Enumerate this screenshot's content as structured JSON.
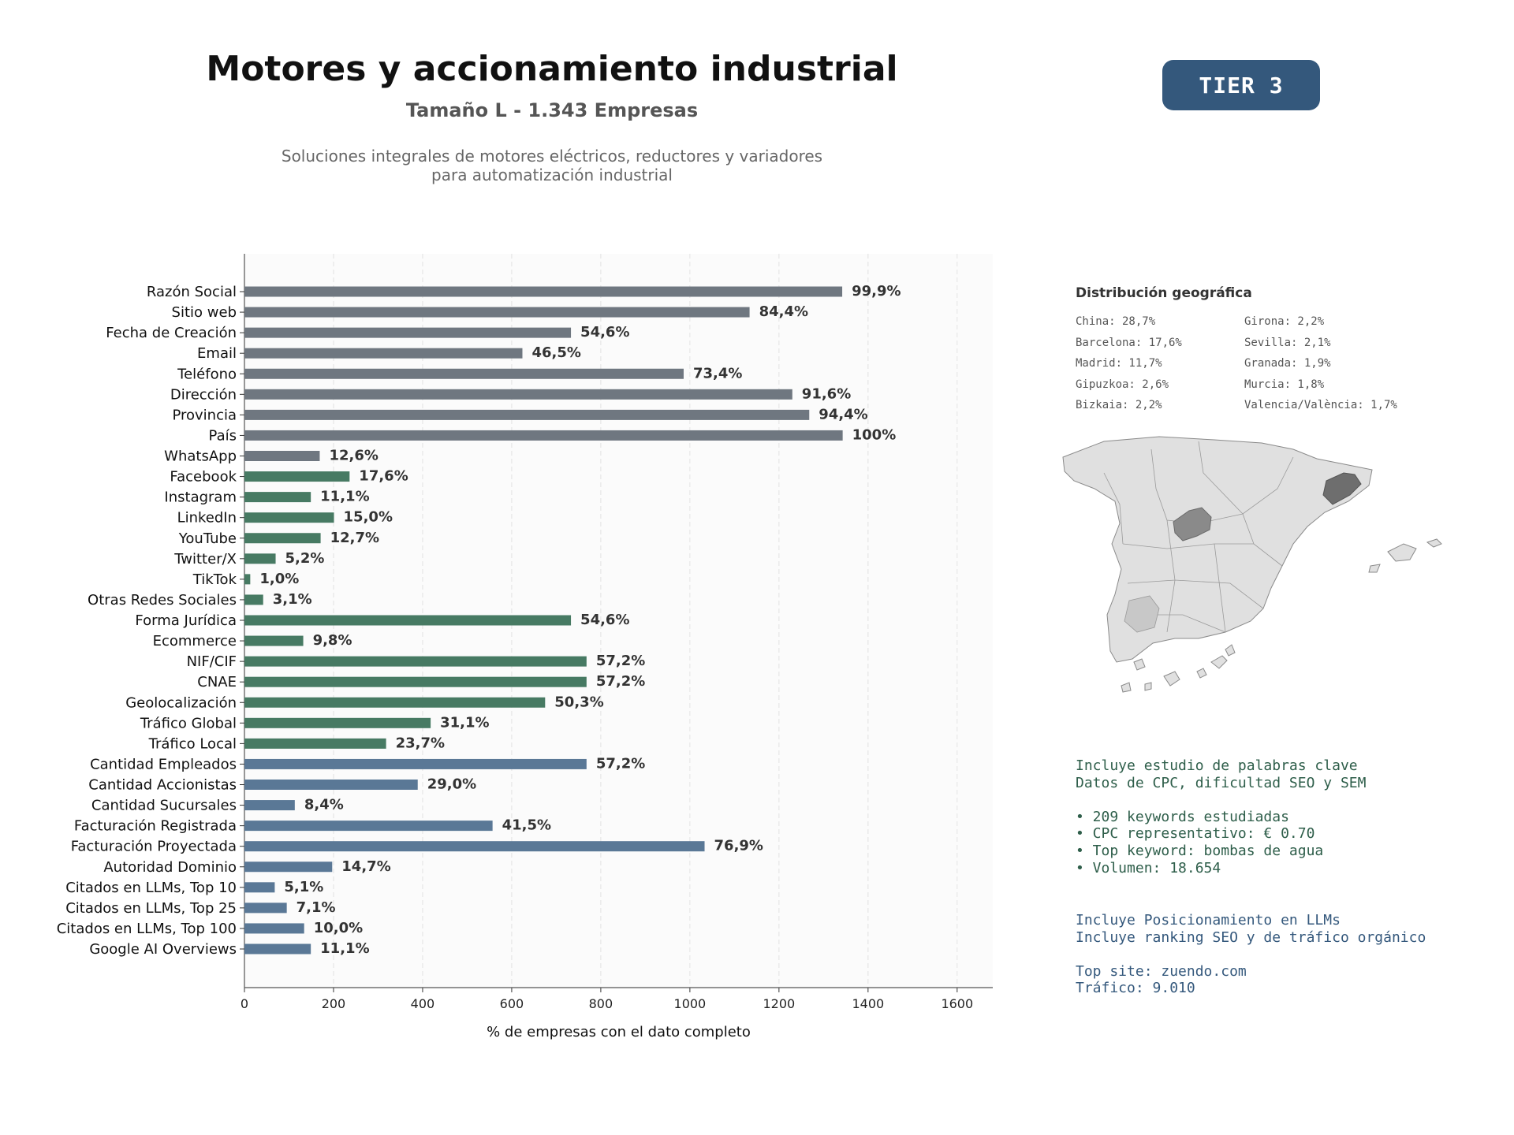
{
  "header": {
    "title": "Motores y accionamiento industrial",
    "subtitle": "Tamaño L - 1.343 Empresas",
    "description_line1": "Soluciones integrales de motores eléctricos, reductores y variadores",
    "description_line2": "para automatización industrial",
    "tier": "TIER 3"
  },
  "chart_data": {
    "type": "bar",
    "orientation": "horizontal",
    "xlabel": "% de empresas con el dato completo",
    "xlim": [
      0,
      1680
    ],
    "xticks": [
      0,
      200,
      400,
      600,
      800,
      1000,
      1200,
      1400,
      1600
    ],
    "grid": "vertical dashed",
    "categories": [
      "Razón Social",
      "Sitio web",
      "Fecha de Creación",
      "Email",
      "Teléfono",
      "Dirección",
      "Provincia",
      "País",
      "WhatsApp",
      "Facebook",
      "Instagram",
      "LinkedIn",
      "YouTube",
      "Twitter/X",
      "TikTok",
      "Otras Redes Sociales",
      "Forma Jurídica",
      "Ecommerce",
      "NIF/CIF",
      "CNAE",
      "Geolocalización",
      "Tráfico Global",
      "Tráfico Local",
      "Cantidad Empleados",
      "Cantidad Accionistas",
      "Cantidad Sucursales",
      "Facturación Registrada",
      "Facturación Proyectada",
      "Autoridad Dominio",
      "Citados en LLMs, Top 10",
      "Citados en LLMs, Top 25",
      "Citados en LLMs, Top 100",
      "Google AI Overviews"
    ],
    "values": [
      1342,
      1134,
      733,
      624,
      986,
      1230,
      1268,
      1343,
      169,
      236,
      149,
      201,
      171,
      70,
      13,
      42,
      733,
      132,
      768,
      768,
      675,
      418,
      318,
      768,
      389,
      113,
      557,
      1033,
      197,
      68,
      95,
      134,
      149
    ],
    "labels": [
      "99,9%",
      "84,4%",
      "54,6%",
      "46,5%",
      "73,4%",
      "91,6%",
      "94,4%",
      "100%",
      "12,6%",
      "17,6%",
      "11,1%",
      "15,0%",
      "12,7%",
      "5,2%",
      "1,0%",
      "3,1%",
      "54,6%",
      "9,8%",
      "57,2%",
      "57,2%",
      "50,3%",
      "31,1%",
      "23,7%",
      "57,2%",
      "29,0%",
      "8,4%",
      "41,5%",
      "76,9%",
      "14,7%",
      "5,1%",
      "7,1%",
      "10,0%",
      "11,1%"
    ],
    "group_colors": [
      "#6f7780",
      "#6f7780",
      "#6f7780",
      "#6f7780",
      "#6f7780",
      "#6f7780",
      "#6f7780",
      "#6f7780",
      "#6f7780",
      "#477a63",
      "#477a63",
      "#477a63",
      "#477a63",
      "#477a63",
      "#477a63",
      "#477a63",
      "#477a63",
      "#477a63",
      "#477a63",
      "#477a63",
      "#477a63",
      "#477a63",
      "#477a63",
      "#5a7896",
      "#5a7896",
      "#5a7896",
      "#5a7896",
      "#5a7896",
      "#5a7896",
      "#5a7896",
      "#5a7896",
      "#5a7896",
      "#5a7896"
    ]
  },
  "geo": {
    "title": "Distribución geográfica",
    "col1": [
      "China: 28,7%",
      "Barcelona: 17,6%",
      "Madrid: 11,7%",
      "Gipuzkoa: 2,6%",
      "Bizkaia: 2,2%"
    ],
    "col2": [
      "Girona: 2,2%",
      "Sevilla: 2,1%",
      "Granada: 1,9%",
      "Murcia: 1,8%",
      "Valencia/València: 1,7%"
    ]
  },
  "seo": {
    "lines": [
      "Incluye estudio de palabras clave",
      "Datos de CPC, dificultad SEO y SEM",
      "",
      "• 209 keywords estudiadas",
      "• CPC representativo: € 0.70",
      "• Top keyword: bombas de agua",
      "• Volumen: 18.654"
    ]
  },
  "llm": {
    "lines": [
      "Incluye Posicionamiento en LLMs",
      "Incluye ranking SEO y de tráfico orgánico",
      "",
      "Top site: zuendo.com",
      "Tráfico: 9.010"
    ]
  },
  "colors": {
    "badge": "#34587c",
    "map_base": "#e0e0e0",
    "map_highlight_dark": "#6e6e6e",
    "map_highlight_mid": "#8a8a8a",
    "map_light": "#c8c8c8"
  }
}
